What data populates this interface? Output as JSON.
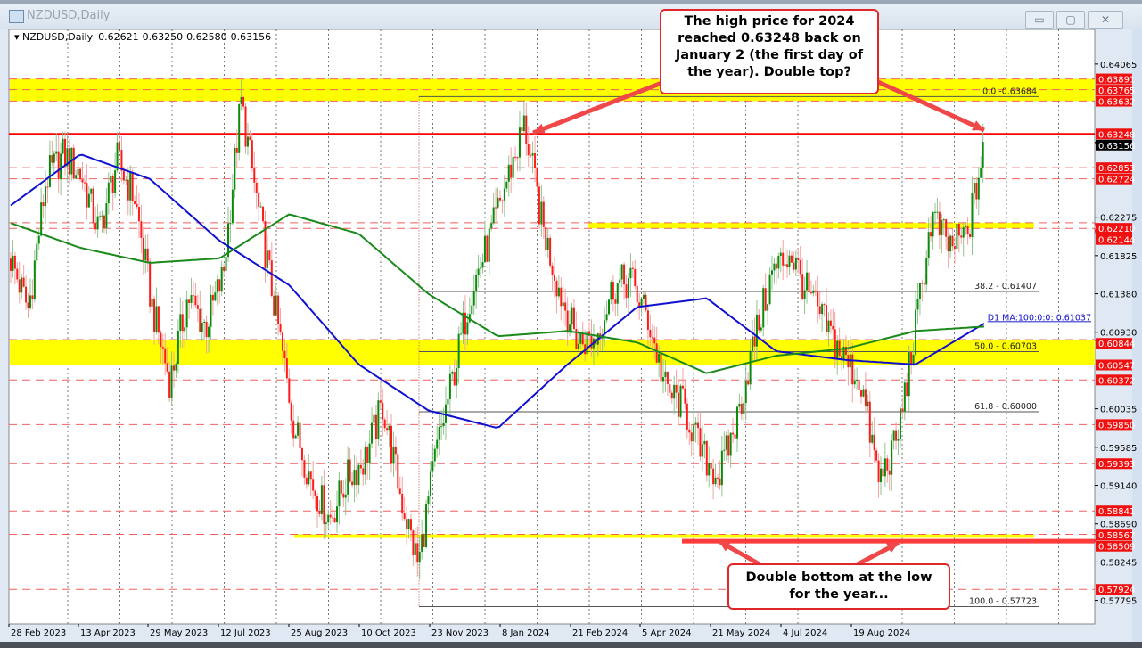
{
  "window": {
    "title": "NZDUSD,Daily",
    "buttons": {
      "minimize": "▭",
      "maximize": "▢",
      "close": "✕"
    }
  },
  "chart_data": {
    "type": "candlestick",
    "symbol_header": "NZDUSD,Daily",
    "ohlc_readout": {
      "open": "0.62621",
      "high": "0.63250",
      "low": "0.62580",
      "close": "0.63156"
    },
    "current_price": "0.63156",
    "ylim": [
      0.5752,
      0.6447
    ],
    "y_ticks": [
      "0.64065",
      "0.62275",
      "0.61825",
      "0.61380",
      "0.60930",
      "0.60035",
      "0.59585",
      "0.59140",
      "0.58690",
      "0.58245",
      "0.57795"
    ],
    "x_ticks": [
      "28 Feb 2023",
      "13 Apr 2023",
      "29 May 2023",
      "12 Jul 2023",
      "25 Aug 2023",
      "10 Oct 2023",
      "23 Nov 2023",
      "8 Jan 2024",
      "21 Feb 2024",
      "5 Apr 2024",
      "21 May 2024",
      "4 Jul 2024",
      "19 Aug 2024"
    ],
    "approx_closes": [
      0.6179,
      0.6119,
      0.6272,
      0.6301,
      0.6276,
      0.621,
      0.6294,
      0.625,
      0.6121,
      0.6035,
      0.6135,
      0.6099,
      0.616,
      0.6363,
      0.6234,
      0.6111,
      0.5983,
      0.5917,
      0.5875,
      0.5922,
      0.5945,
      0.6008,
      0.5903,
      0.582,
      0.5951,
      0.6044,
      0.6143,
      0.6199,
      0.627,
      0.6336,
      0.6219,
      0.614,
      0.6082,
      0.6085,
      0.6146,
      0.6154,
      0.6107,
      0.6024,
      0.6007,
      0.595,
      0.5925,
      0.5991,
      0.6086,
      0.6163,
      0.6186,
      0.6138,
      0.6101,
      0.6064,
      0.6034,
      0.5919,
      0.5964,
      0.6088,
      0.6229,
      0.6192,
      0.6207,
      0.6316
    ],
    "moving_averages": [
      {
        "name": "D1 MA:100:0:0: 0.61037",
        "color": "#1010d0",
        "values": [
          0.62412,
          0.63011,
          0.62722,
          0.61999,
          0.61482,
          0.60553,
          0.60016,
          0.59809,
          0.60553,
          0.61224,
          0.61328,
          0.60708,
          0.60605,
          0.60553,
          0.61038
        ]
      },
      {
        "color": "#1a8a1a",
        "values": [
          0.62206,
          0.61917,
          0.61741,
          0.61793,
          0.62309,
          0.62082,
          0.61379,
          0.60883,
          0.60945,
          0.60811,
          0.6045,
          0.60656,
          0.60739,
          0.60945,
          0.60997
        ]
      }
    ],
    "levels": [
      {
        "price": 0.63891,
        "label": "0.63891",
        "style": "dashed"
      },
      {
        "price": 0.63765,
        "label": "0.63765",
        "style": "dashed"
      },
      {
        "price": 0.63632,
        "label": "0.63632",
        "style": "dashed"
      },
      {
        "price": 0.63248,
        "label": "0.63248",
        "style": "solid"
      },
      {
        "price": 0.62853,
        "label": "0.62853",
        "style": "dashed"
      },
      {
        "price": 0.62724,
        "label": "0.62724",
        "style": "dashed"
      },
      {
        "price": 0.6221,
        "label": "0.62210",
        "style": "dashed"
      },
      {
        "price": 0.62144,
        "label": "0.62144",
        "style": "dashed"
      },
      {
        "price": 0.60844,
        "label": "0.60844",
        "style": "dashed"
      },
      {
        "price": 0.60547,
        "label": "0.60547",
        "style": "dashed"
      },
      {
        "price": 0.60372,
        "label": "0.60372",
        "style": "dashed"
      },
      {
        "price": 0.5985,
        "label": "0.59850",
        "style": "dashed"
      },
      {
        "price": 0.59393,
        "label": "0.59393",
        "style": "dashed"
      },
      {
        "price": 0.58841,
        "label": "0.58841",
        "style": "dashed"
      },
      {
        "price": 0.58567,
        "label": "0.58567",
        "style": "dashed"
      },
      {
        "price": 0.58509,
        "label": "0.58509",
        "style": "thick"
      },
      {
        "price": 0.57924,
        "label": "0.57924",
        "style": "dashed"
      }
    ],
    "zones": [
      {
        "from": 0.63632,
        "to": 0.63891,
        "color": "#ffff00"
      },
      {
        "from": 0.60547,
        "to": 0.60844,
        "color": "#ffff00"
      },
      {
        "from": 0.62144,
        "to": 0.6221,
        "color": "#ffff00",
        "partial": true
      },
      {
        "from": 0.5854,
        "to": 0.58567,
        "color": "#ffff00",
        "partial": true
      }
    ],
    "fibonacci": [
      {
        "label": "0.0 -0.63684",
        "price": 0.63684
      },
      {
        "label": "38.2 - 0.61407",
        "price": 0.61407
      },
      {
        "label": "50.0 - 0.60703",
        "price": 0.60703
      },
      {
        "label": "61.8 - 0.60000",
        "price": 0.6
      },
      {
        "label": "100.0 - 0.57723",
        "price": 0.57723
      }
    ],
    "colors": {
      "up": "#0a8a0a",
      "down": "#ff1a1a",
      "level": "#ff0000",
      "zone": "#ffff00"
    }
  },
  "annotations": {
    "top": "The high price for 2024 reached 0.63248 back on January 2 (the first day of the year).  Double top?",
    "bottom": "Double bottom at the low for the year..."
  }
}
